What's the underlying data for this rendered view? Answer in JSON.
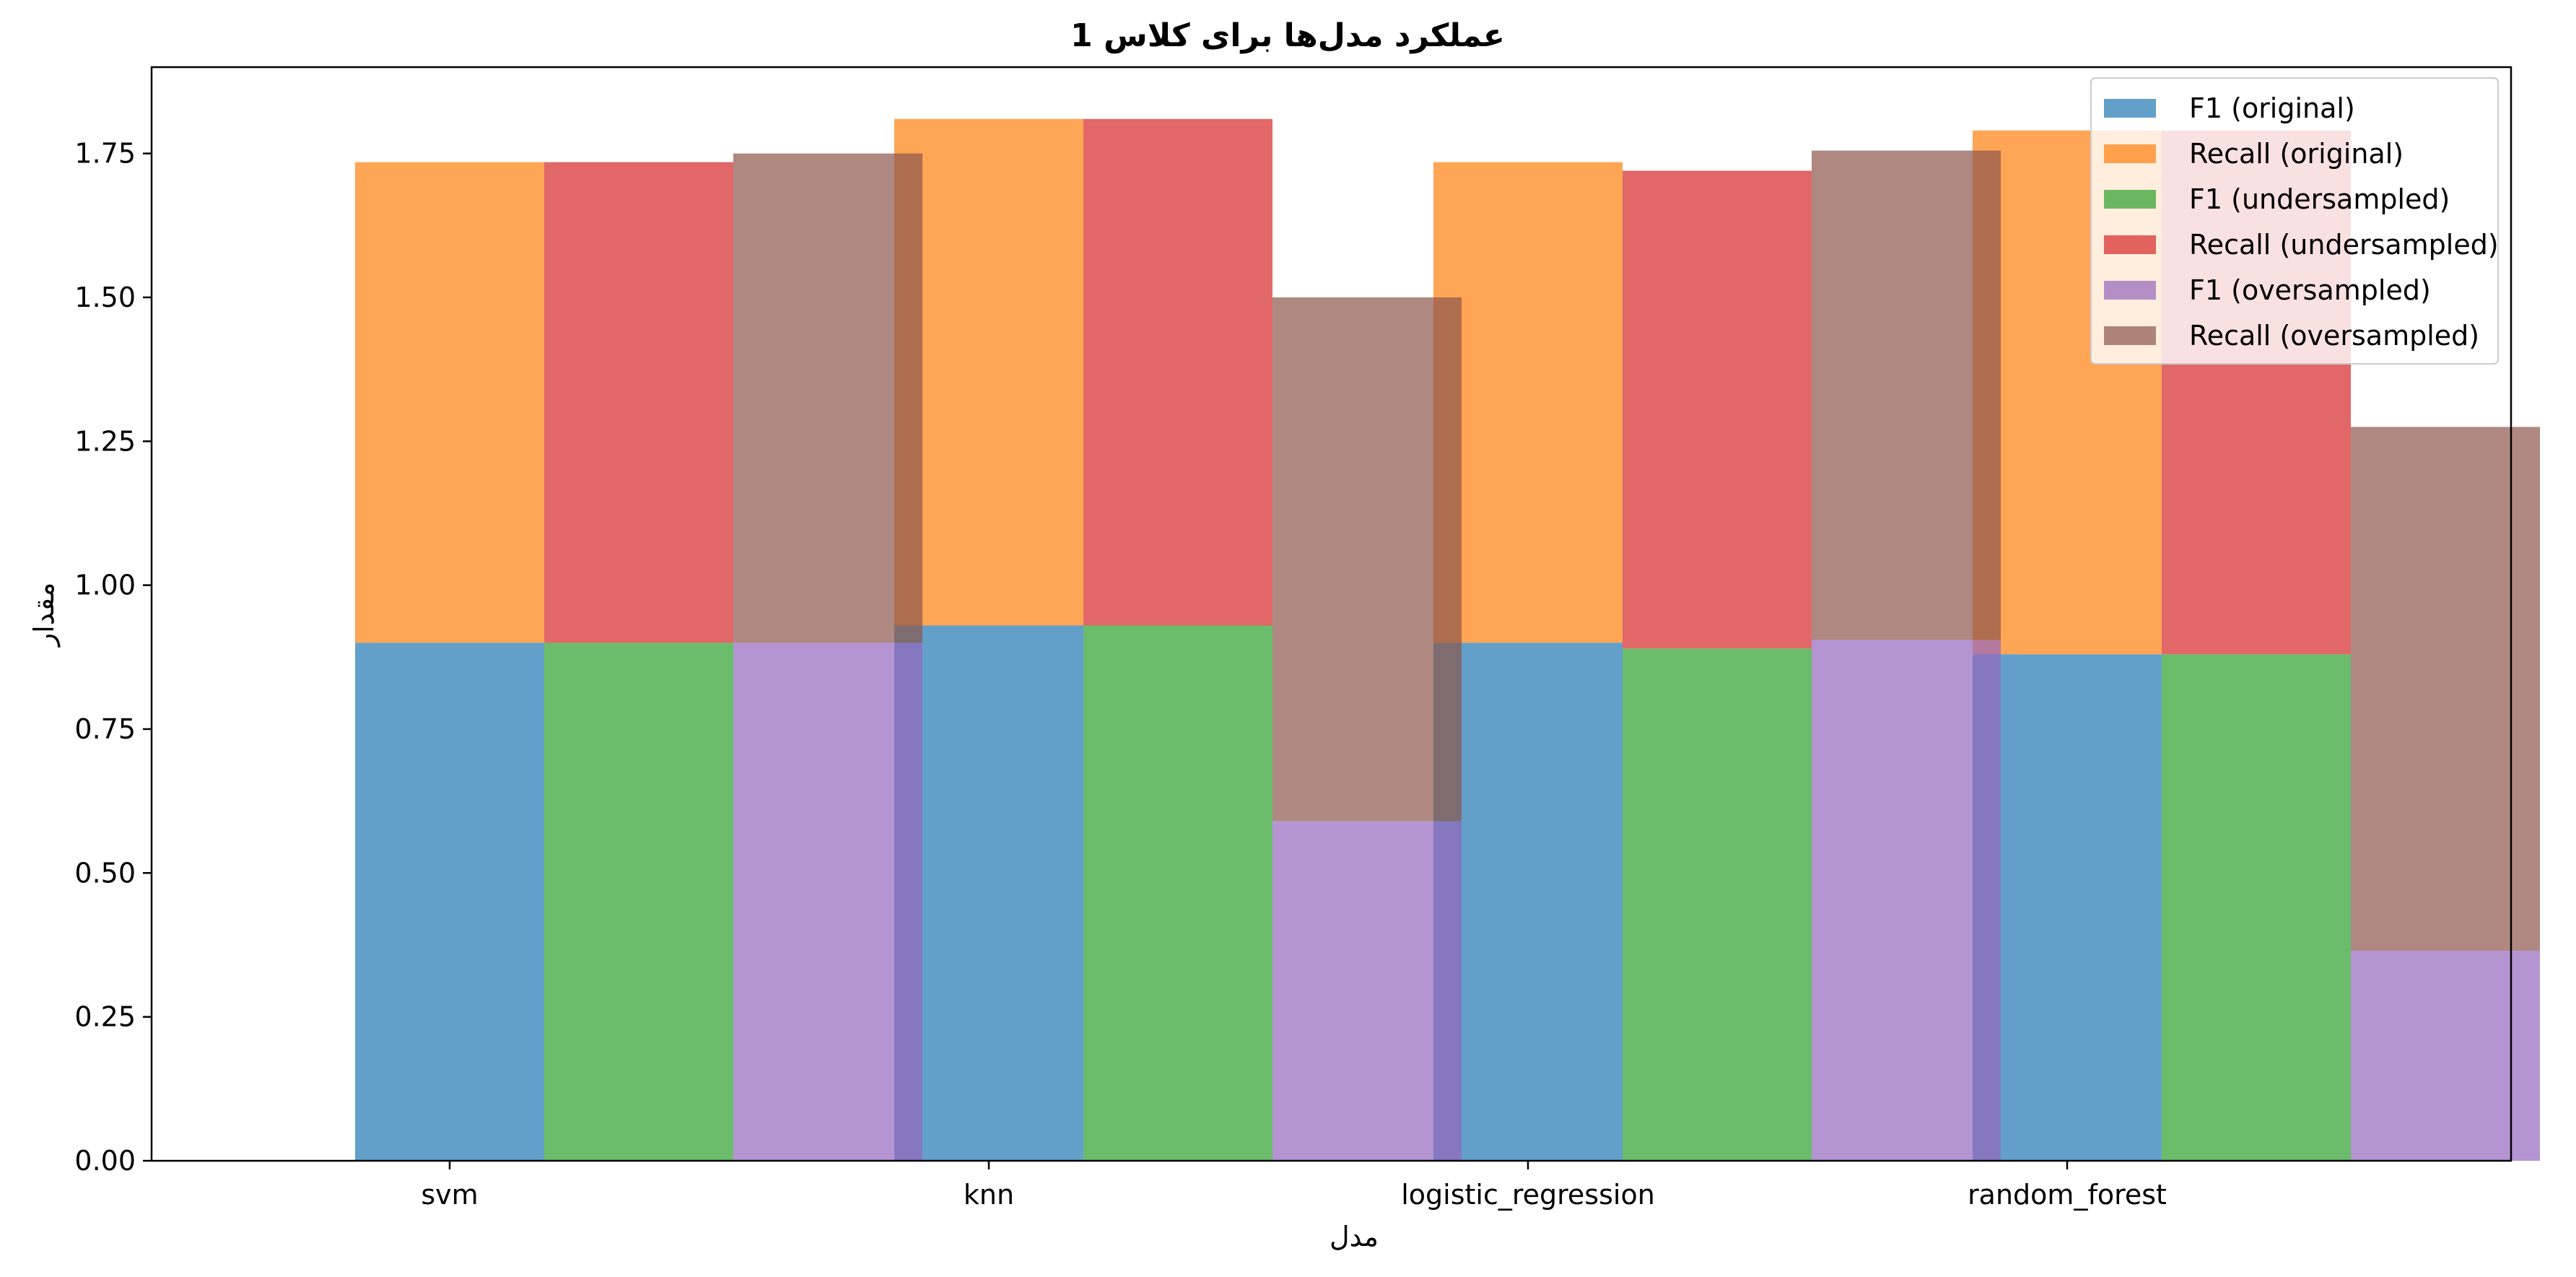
{
  "chart_data": {
    "type": "bar",
    "title": "عملکرد مدل‌ها برای کلاس 1",
    "xlabel": "مدل",
    "ylabel": "مقدار",
    "categories": [
      "svm",
      "knn",
      "logistic_regression",
      "random_forest"
    ],
    "ylim": [
      0,
      1.9
    ],
    "yticks": [
      0.0,
      0.25,
      0.5,
      0.75,
      1.0,
      1.25,
      1.5,
      1.75
    ],
    "grid": false,
    "legend_position": "top-right",
    "series": [
      {
        "name": "F1 (original)",
        "color": "#1f77b4",
        "offset": 0,
        "values": [
          0.9,
          0.93,
          0.9,
          0.88
        ]
      },
      {
        "name": "Recall (original)",
        "color": "#ff7f0e",
        "offset": 0,
        "bottom_of": "F1 (original)",
        "values": [
          0.835,
          0.88,
          0.835,
          0.91
        ]
      },
      {
        "name": "F1 (undersampled)",
        "color": "#2ca02c",
        "offset": 1,
        "values": [
          0.9,
          0.93,
          0.89,
          0.88
        ]
      },
      {
        "name": "Recall (undersampled)",
        "color": "#d62728",
        "offset": 1,
        "bottom_of": "F1 (undersampled)",
        "values": [
          0.835,
          0.88,
          0.83,
          0.91
        ]
      },
      {
        "name": "F1 (oversampled)",
        "color": "#9467bd",
        "offset": 2,
        "values": [
          0.9,
          0.59,
          0.905,
          0.365
        ]
      },
      {
        "name": "Recall (oversampled)",
        "color": "#8c564b",
        "offset": 2,
        "bottom_of": "F1 (oversampled)",
        "values": [
          0.85,
          0.91,
          0.85,
          0.91
        ]
      }
    ]
  }
}
